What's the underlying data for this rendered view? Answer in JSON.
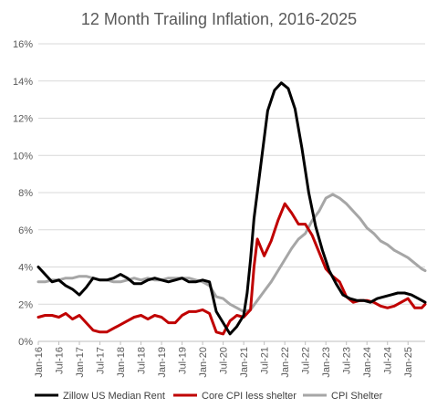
{
  "chart_data": {
    "type": "line",
    "title": "12 Month Trailing Inflation, 2016-2025",
    "xlabel": "",
    "ylabel": "",
    "ylim": [
      0,
      16
    ],
    "y_ticks": [
      "0%",
      "2%",
      "4%",
      "6%",
      "8%",
      "10%",
      "12%",
      "14%",
      "16%"
    ],
    "x_range": [
      "2016-01",
      "2025-06"
    ],
    "x_ticks": [
      "Jan-16",
      "Jul-16",
      "Jan-17",
      "Jul-17",
      "Jan-18",
      "Jul-18",
      "Jan-19",
      "Jul-19",
      "Jan-20",
      "Jul-20",
      "Jan-21",
      "Jul-21",
      "Jan-22",
      "Jul-22",
      "Jan-23",
      "Jul-23",
      "Jan-24",
      "Jul-24",
      "Jan-25"
    ],
    "grid": "horizontal",
    "legend_position": "bottom",
    "series": [
      {
        "name": "Zillow US Median Rent",
        "color": "#000000",
        "points": [
          [
            "2016-01",
            4.0
          ],
          [
            "2016-03",
            3.6
          ],
          [
            "2016-05",
            3.2
          ],
          [
            "2016-07",
            3.3
          ],
          [
            "2016-09",
            3.0
          ],
          [
            "2016-11",
            2.8
          ],
          [
            "2017-01",
            2.5
          ],
          [
            "2017-03",
            2.9
          ],
          [
            "2017-05",
            3.4
          ],
          [
            "2017-07",
            3.3
          ],
          [
            "2017-09",
            3.3
          ],
          [
            "2017-11",
            3.4
          ],
          [
            "2018-01",
            3.6
          ],
          [
            "2018-03",
            3.4
          ],
          [
            "2018-05",
            3.1
          ],
          [
            "2018-07",
            3.1
          ],
          [
            "2018-09",
            3.3
          ],
          [
            "2018-11",
            3.4
          ],
          [
            "2019-01",
            3.3
          ],
          [
            "2019-03",
            3.2
          ],
          [
            "2019-05",
            3.3
          ],
          [
            "2019-07",
            3.4
          ],
          [
            "2019-09",
            3.2
          ],
          [
            "2019-11",
            3.2
          ],
          [
            "2020-01",
            3.3
          ],
          [
            "2020-03",
            3.2
          ],
          [
            "2020-04",
            2.4
          ],
          [
            "2020-05",
            1.6
          ],
          [
            "2020-07",
            1.0
          ],
          [
            "2020-09",
            0.4
          ],
          [
            "2020-11",
            0.8
          ],
          [
            "2021-01",
            1.4
          ],
          [
            "2021-02",
            2.6
          ],
          [
            "2021-03",
            4.4
          ],
          [
            "2021-04",
            6.6
          ],
          [
            "2021-06",
            9.5
          ],
          [
            "2021-08",
            12.4
          ],
          [
            "2021-10",
            13.5
          ],
          [
            "2021-12",
            13.9
          ],
          [
            "2022-02",
            13.6
          ],
          [
            "2022-04",
            12.5
          ],
          [
            "2022-06",
            10.4
          ],
          [
            "2022-08",
            8.0
          ],
          [
            "2022-10",
            6.2
          ],
          [
            "2022-12",
            4.9
          ],
          [
            "2023-02",
            3.8
          ],
          [
            "2023-04",
            3.1
          ],
          [
            "2023-06",
            2.5
          ],
          [
            "2023-08",
            2.3
          ],
          [
            "2023-10",
            2.2
          ],
          [
            "2023-12",
            2.2
          ],
          [
            "2024-02",
            2.1
          ],
          [
            "2024-04",
            2.3
          ],
          [
            "2024-06",
            2.4
          ],
          [
            "2024-08",
            2.5
          ],
          [
            "2024-10",
            2.6
          ],
          [
            "2024-12",
            2.6
          ],
          [
            "2025-02",
            2.5
          ],
          [
            "2025-04",
            2.3
          ],
          [
            "2025-06",
            2.1
          ]
        ]
      },
      {
        "name": "Core CPI less shelter",
        "color": "#c00000",
        "points": [
          [
            "2016-01",
            1.3
          ],
          [
            "2016-03",
            1.4
          ],
          [
            "2016-05",
            1.4
          ],
          [
            "2016-07",
            1.3
          ],
          [
            "2016-09",
            1.5
          ],
          [
            "2016-11",
            1.2
          ],
          [
            "2017-01",
            1.4
          ],
          [
            "2017-03",
            1.0
          ],
          [
            "2017-05",
            0.6
          ],
          [
            "2017-07",
            0.5
          ],
          [
            "2017-09",
            0.5
          ],
          [
            "2017-11",
            0.7
          ],
          [
            "2018-01",
            0.9
          ],
          [
            "2018-03",
            1.1
          ],
          [
            "2018-05",
            1.3
          ],
          [
            "2018-07",
            1.4
          ],
          [
            "2018-09",
            1.2
          ],
          [
            "2018-11",
            1.4
          ],
          [
            "2019-01",
            1.3
          ],
          [
            "2019-03",
            1.0
          ],
          [
            "2019-05",
            1.0
          ],
          [
            "2019-07",
            1.4
          ],
          [
            "2019-09",
            1.6
          ],
          [
            "2019-11",
            1.6
          ],
          [
            "2020-01",
            1.7
          ],
          [
            "2020-03",
            1.5
          ],
          [
            "2020-05",
            0.5
          ],
          [
            "2020-07",
            0.4
          ],
          [
            "2020-09",
            1.1
          ],
          [
            "2020-11",
            1.4
          ],
          [
            "2021-01",
            1.3
          ],
          [
            "2021-03",
            1.7
          ],
          [
            "2021-04",
            4.0
          ],
          [
            "2021-05",
            5.5
          ],
          [
            "2021-07",
            4.6
          ],
          [
            "2021-09",
            5.4
          ],
          [
            "2021-11",
            6.5
          ],
          [
            "2022-01",
            7.4
          ],
          [
            "2022-03",
            6.9
          ],
          [
            "2022-05",
            6.3
          ],
          [
            "2022-07",
            6.3
          ],
          [
            "2022-09",
            5.7
          ],
          [
            "2022-11",
            4.8
          ],
          [
            "2023-01",
            3.9
          ],
          [
            "2023-03",
            3.5
          ],
          [
            "2023-05",
            3.2
          ],
          [
            "2023-07",
            2.4
          ],
          [
            "2023-09",
            2.1
          ],
          [
            "2023-11",
            2.2
          ],
          [
            "2024-01",
            2.2
          ],
          [
            "2024-03",
            2.1
          ],
          [
            "2024-05",
            1.9
          ],
          [
            "2024-07",
            1.8
          ],
          [
            "2024-09",
            1.9
          ],
          [
            "2024-11",
            2.1
          ],
          [
            "2025-01",
            2.3
          ],
          [
            "2025-03",
            1.8
          ],
          [
            "2025-05",
            1.8
          ],
          [
            "2025-06",
            2.0
          ]
        ]
      },
      {
        "name": "CPI Shelter",
        "color": "#a6a6a6",
        "points": [
          [
            "2016-01",
            3.2
          ],
          [
            "2016-03",
            3.2
          ],
          [
            "2016-05",
            3.3
          ],
          [
            "2016-07",
            3.3
          ],
          [
            "2016-09",
            3.4
          ],
          [
            "2016-11",
            3.4
          ],
          [
            "2017-01",
            3.5
          ],
          [
            "2017-03",
            3.5
          ],
          [
            "2017-05",
            3.4
          ],
          [
            "2017-07",
            3.3
          ],
          [
            "2017-09",
            3.3
          ],
          [
            "2017-11",
            3.2
          ],
          [
            "2018-01",
            3.2
          ],
          [
            "2018-03",
            3.3
          ],
          [
            "2018-05",
            3.4
          ],
          [
            "2018-07",
            3.3
          ],
          [
            "2018-09",
            3.4
          ],
          [
            "2018-11",
            3.3
          ],
          [
            "2019-01",
            3.3
          ],
          [
            "2019-03",
            3.4
          ],
          [
            "2019-05",
            3.4
          ],
          [
            "2019-07",
            3.4
          ],
          [
            "2019-09",
            3.4
          ],
          [
            "2019-11",
            3.3
          ],
          [
            "2020-01",
            3.2
          ],
          [
            "2020-03",
            3.0
          ],
          [
            "2020-05",
            2.4
          ],
          [
            "2020-07",
            2.3
          ],
          [
            "2020-09",
            2.0
          ],
          [
            "2020-11",
            1.8
          ],
          [
            "2021-01",
            1.6
          ],
          [
            "2021-03",
            1.7
          ],
          [
            "2021-05",
            2.2
          ],
          [
            "2021-07",
            2.7
          ],
          [
            "2021-09",
            3.2
          ],
          [
            "2021-11",
            3.8
          ],
          [
            "2022-01",
            4.4
          ],
          [
            "2022-03",
            5.0
          ],
          [
            "2022-05",
            5.5
          ],
          [
            "2022-07",
            5.8
          ],
          [
            "2022-09",
            6.5
          ],
          [
            "2022-11",
            7.0
          ],
          [
            "2023-01",
            7.7
          ],
          [
            "2023-03",
            7.9
          ],
          [
            "2023-05",
            7.7
          ],
          [
            "2023-07",
            7.4
          ],
          [
            "2023-09",
            7.0
          ],
          [
            "2023-11",
            6.6
          ],
          [
            "2024-01",
            6.1
          ],
          [
            "2024-03",
            5.8
          ],
          [
            "2024-05",
            5.4
          ],
          [
            "2024-07",
            5.2
          ],
          [
            "2024-09",
            4.9
          ],
          [
            "2024-11",
            4.7
          ],
          [
            "2025-01",
            4.5
          ],
          [
            "2025-03",
            4.2
          ],
          [
            "2025-05",
            3.9
          ],
          [
            "2025-06",
            3.8
          ]
        ]
      }
    ]
  }
}
